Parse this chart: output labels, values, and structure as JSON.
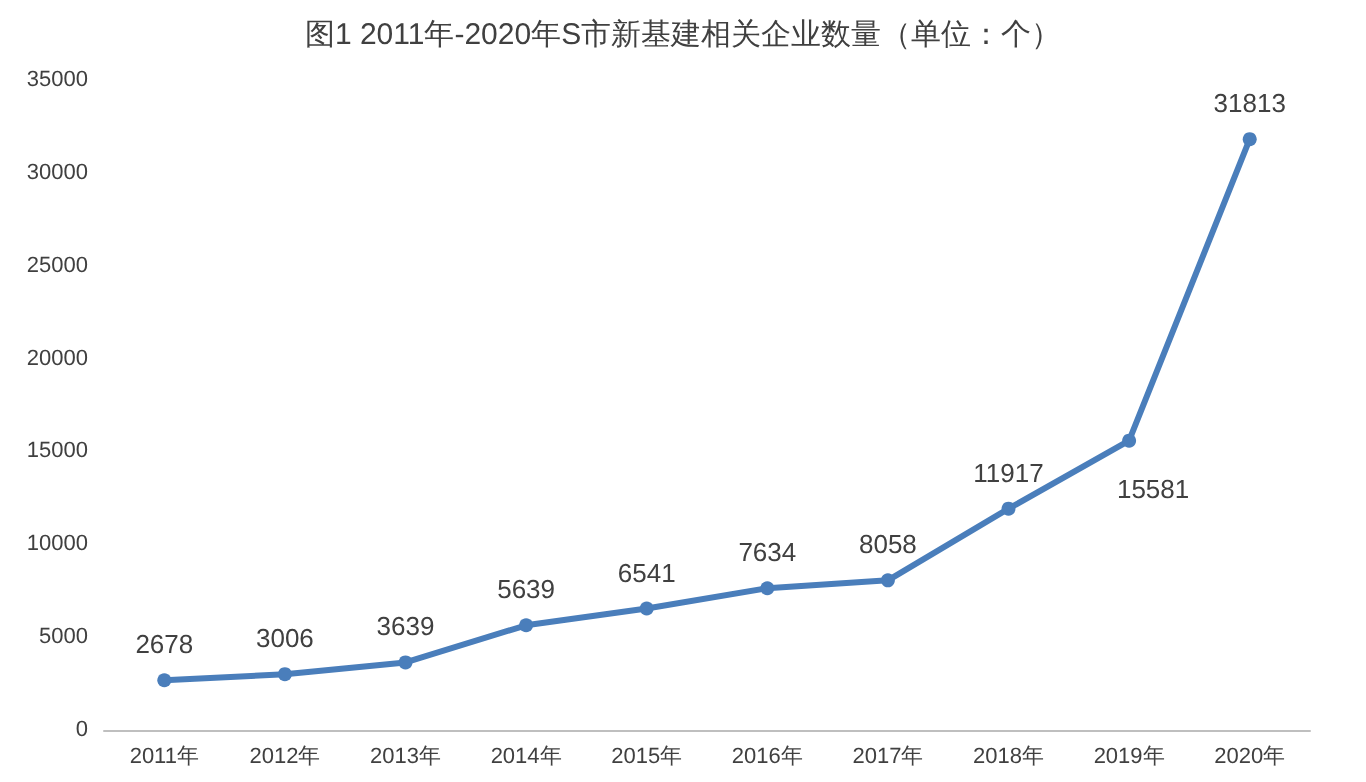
{
  "chart_data": {
    "type": "line",
    "title": "图1 2011年-2020年S市新基建相关企业数量（单位：个）",
    "categories": [
      "2011年",
      "2012年",
      "2013年",
      "2014年",
      "2015年",
      "2016年",
      "2017年",
      "2018年",
      "2019年",
      "2020年"
    ],
    "series": [
      {
        "color": "#4a7ebb",
        "values": [
          2678,
          3006,
          3639,
          5639,
          6541,
          7634,
          8058,
          11917,
          15581,
          31813
        ]
      }
    ],
    "ylim": [
      0,
      35000
    ],
    "yticks": [
      0,
      5000,
      10000,
      15000,
      20000,
      25000,
      30000,
      35000
    ],
    "data_labels": true,
    "grid": false,
    "marker": "circle",
    "line_style": "solid"
  }
}
